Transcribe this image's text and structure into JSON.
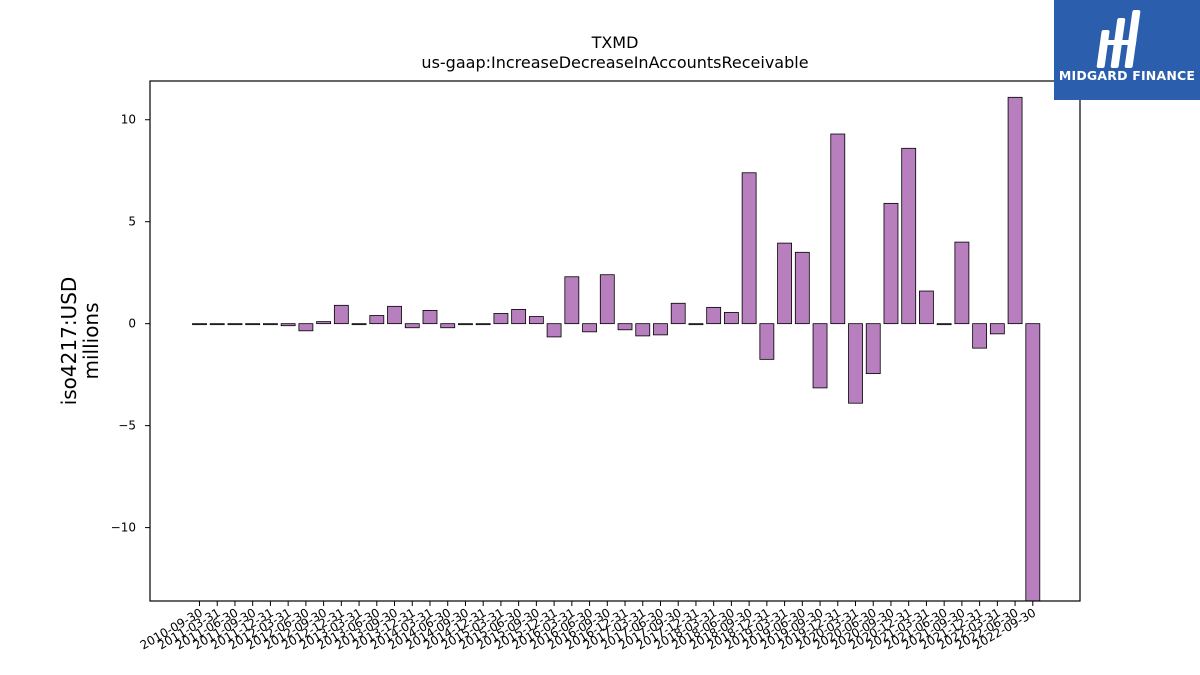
{
  "brand": {
    "name": "MIDGARD FINANCE",
    "bg_color": "#2b5fad"
  },
  "chart_data": {
    "type": "bar",
    "title": "TXMD",
    "subtitle": "us-gaap:IncreaseDecreaseInAccountsReceivable",
    "ylabel": "iso4217:USD",
    "ylabel_unit": "millions",
    "xlabel": "",
    "ylim": [
      -13.6,
      11.9
    ],
    "yticks": [
      -10,
      -5,
      0,
      5,
      10
    ],
    "ytick_labels": [
      "−10",
      "−5",
      "0",
      "5",
      "10"
    ],
    "bar_color": "#b77fbd",
    "edge_color": "#000000",
    "grid": false,
    "categories": [
      "2010-09-30",
      "2011-03-31",
      "2011-06-30",
      "2011-09-30",
      "2011-12-31",
      "2012-03-31",
      "2012-06-30",
      "2012-09-30",
      "2012-12-31",
      "2013-03-31",
      "2013-06-30",
      "2013-09-30",
      "2013-12-31",
      "2014-03-31",
      "2014-06-30",
      "2014-09-30",
      "2014-12-31",
      "2015-03-31",
      "2015-06-30",
      "2015-09-30",
      "2015-12-31",
      "2016-03-31",
      "2016-06-30",
      "2016-09-30",
      "2016-12-31",
      "2017-03-31",
      "2017-06-30",
      "2017-09-30",
      "2017-12-31",
      "2018-03-31",
      "2018-06-30",
      "2018-09-30",
      "2018-12-31",
      "2019-03-31",
      "2019-06-30",
      "2019-09-30",
      "2019-12-31",
      "2020-03-31",
      "2020-06-30",
      "2020-09-30",
      "2020-12-31",
      "2021-03-31",
      "2021-06-30",
      "2021-09-30",
      "2021-12-31",
      "2022-03-31",
      "2022-06-30",
      "2022-09-30"
    ],
    "values": [
      0.0,
      0.0,
      0.0,
      0.0,
      -0.05,
      -0.1,
      -0.35,
      0.1,
      0.9,
      0.0,
      0.4,
      0.85,
      -0.2,
      0.65,
      -0.2,
      -0.05,
      0.0,
      0.5,
      0.7,
      0.35,
      -0.65,
      2.3,
      -0.4,
      2.4,
      -0.3,
      -0.6,
      -0.55,
      1.0,
      -0.05,
      0.8,
      0.55,
      7.4,
      -1.75,
      3.95,
      3.5,
      -3.15,
      9.3,
      -3.9,
      -2.45,
      5.9,
      8.6,
      1.6,
      -0.05,
      4.0,
      -1.2,
      -0.5,
      11.1,
      -13.6
    ]
  }
}
